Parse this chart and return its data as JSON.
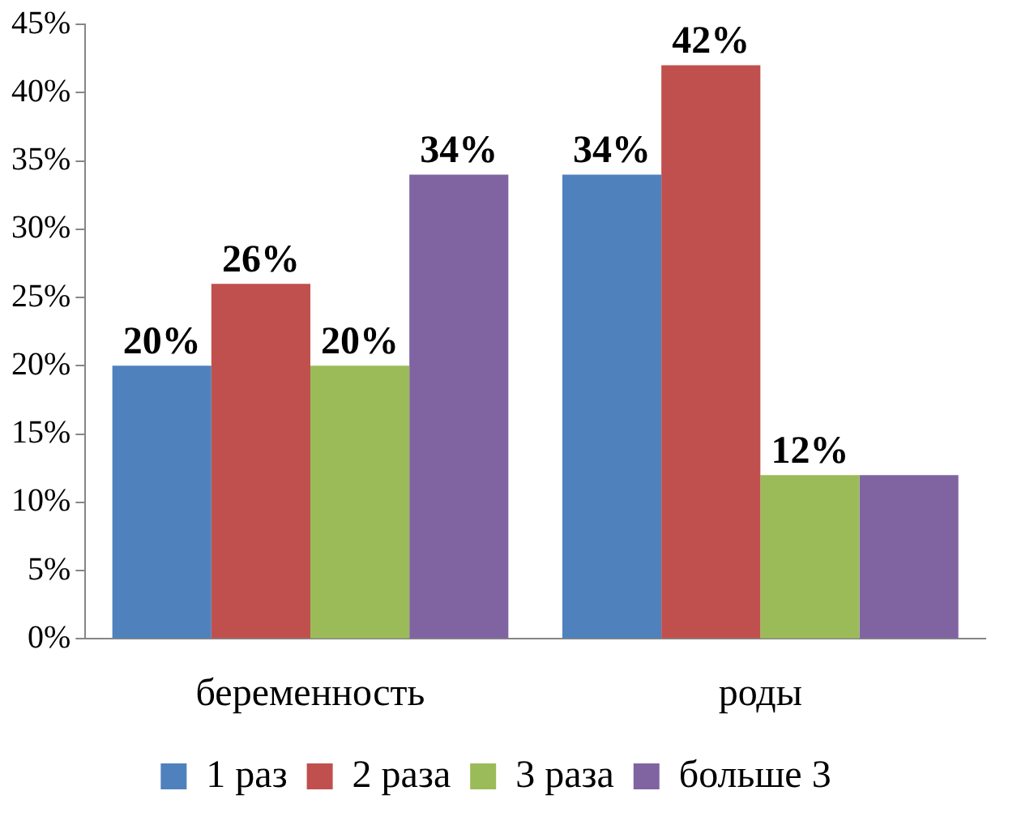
{
  "chart_data": {
    "type": "bar",
    "categories": [
      "беременность",
      "роды"
    ],
    "series": [
      {
        "name": "1 раз",
        "color": "#4f81bd",
        "values": [
          20,
          34
        ],
        "value_labels": [
          "20%",
          "34%"
        ]
      },
      {
        "name": "2 раза",
        "color": "#c0504d",
        "values": [
          26,
          42
        ],
        "value_labels": [
          "26%",
          "42%"
        ]
      },
      {
        "name": "3 раза",
        "color": "#9bbb59",
        "values": [
          20,
          12
        ],
        "value_labels": [
          "20%",
          "12%"
        ]
      },
      {
        "name": "больше 3",
        "color": "#8064a2",
        "values": [
          34,
          12
        ],
        "value_labels": [
          "34%",
          null
        ]
      }
    ],
    "ylim": [
      0,
      45
    ],
    "yticks": [
      {
        "value": 0,
        "label": "0%"
      },
      {
        "value": 5,
        "label": "5%"
      },
      {
        "value": 10,
        "label": "10%"
      },
      {
        "value": 15,
        "label": "15%"
      },
      {
        "value": 20,
        "label": "20%"
      },
      {
        "value": 25,
        "label": "25%"
      },
      {
        "value": 30,
        "label": "30%"
      },
      {
        "value": 35,
        "label": "35%"
      },
      {
        "value": 40,
        "label": "40%"
      },
      {
        "value": 45,
        "label": "45%"
      }
    ],
    "grid": false,
    "legend": "bottom"
  }
}
